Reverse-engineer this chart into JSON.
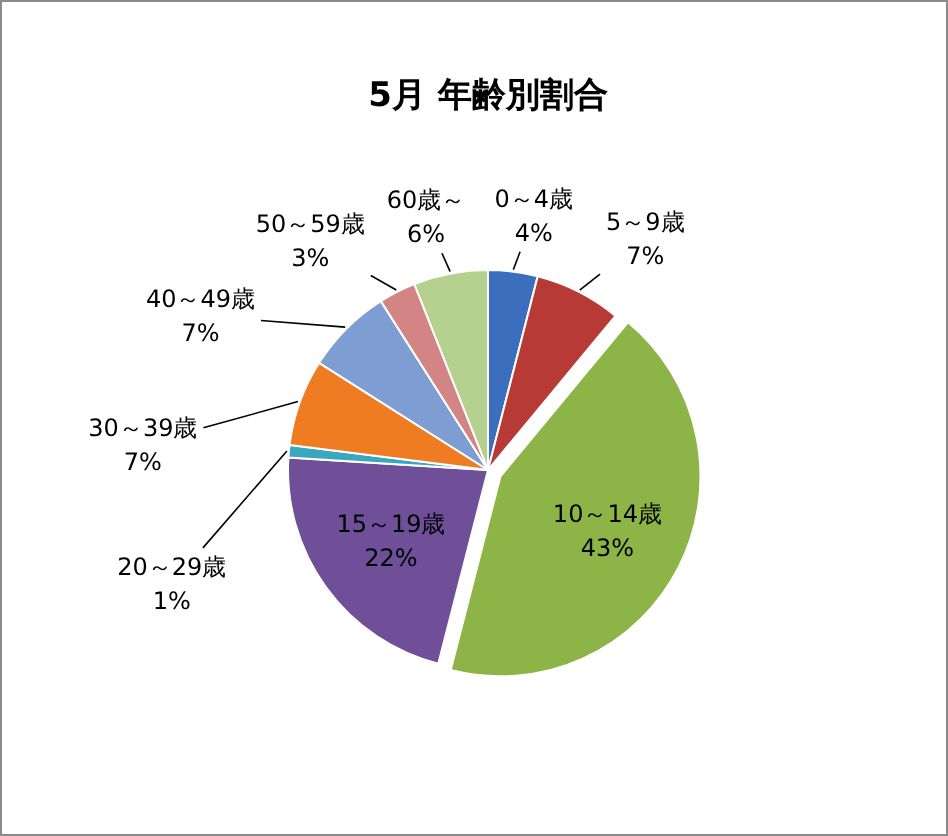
{
  "chart_data": {
    "type": "pie",
    "title": "5月 年齢別割合",
    "categories": [
      "0～4歳",
      "5～9歳",
      "10～14歳",
      "15～19歳",
      "20～29歳",
      "30～39歳",
      "40～49歳",
      "50～59歳",
      "60歳～"
    ],
    "values": [
      4,
      7,
      43,
      22,
      1,
      7,
      7,
      3,
      6
    ],
    "value_labels": [
      "4%",
      "7%",
      "43%",
      "22%",
      "1%",
      "7%",
      "7%",
      "3%",
      "6%"
    ],
    "colors": [
      "#3b6fbd",
      "#b83a37",
      "#8db446",
      "#6e4f98",
      "#3aa7c0",
      "#ef7b22",
      "#7e9ed3",
      "#d38586",
      "#b6d08f"
    ]
  }
}
